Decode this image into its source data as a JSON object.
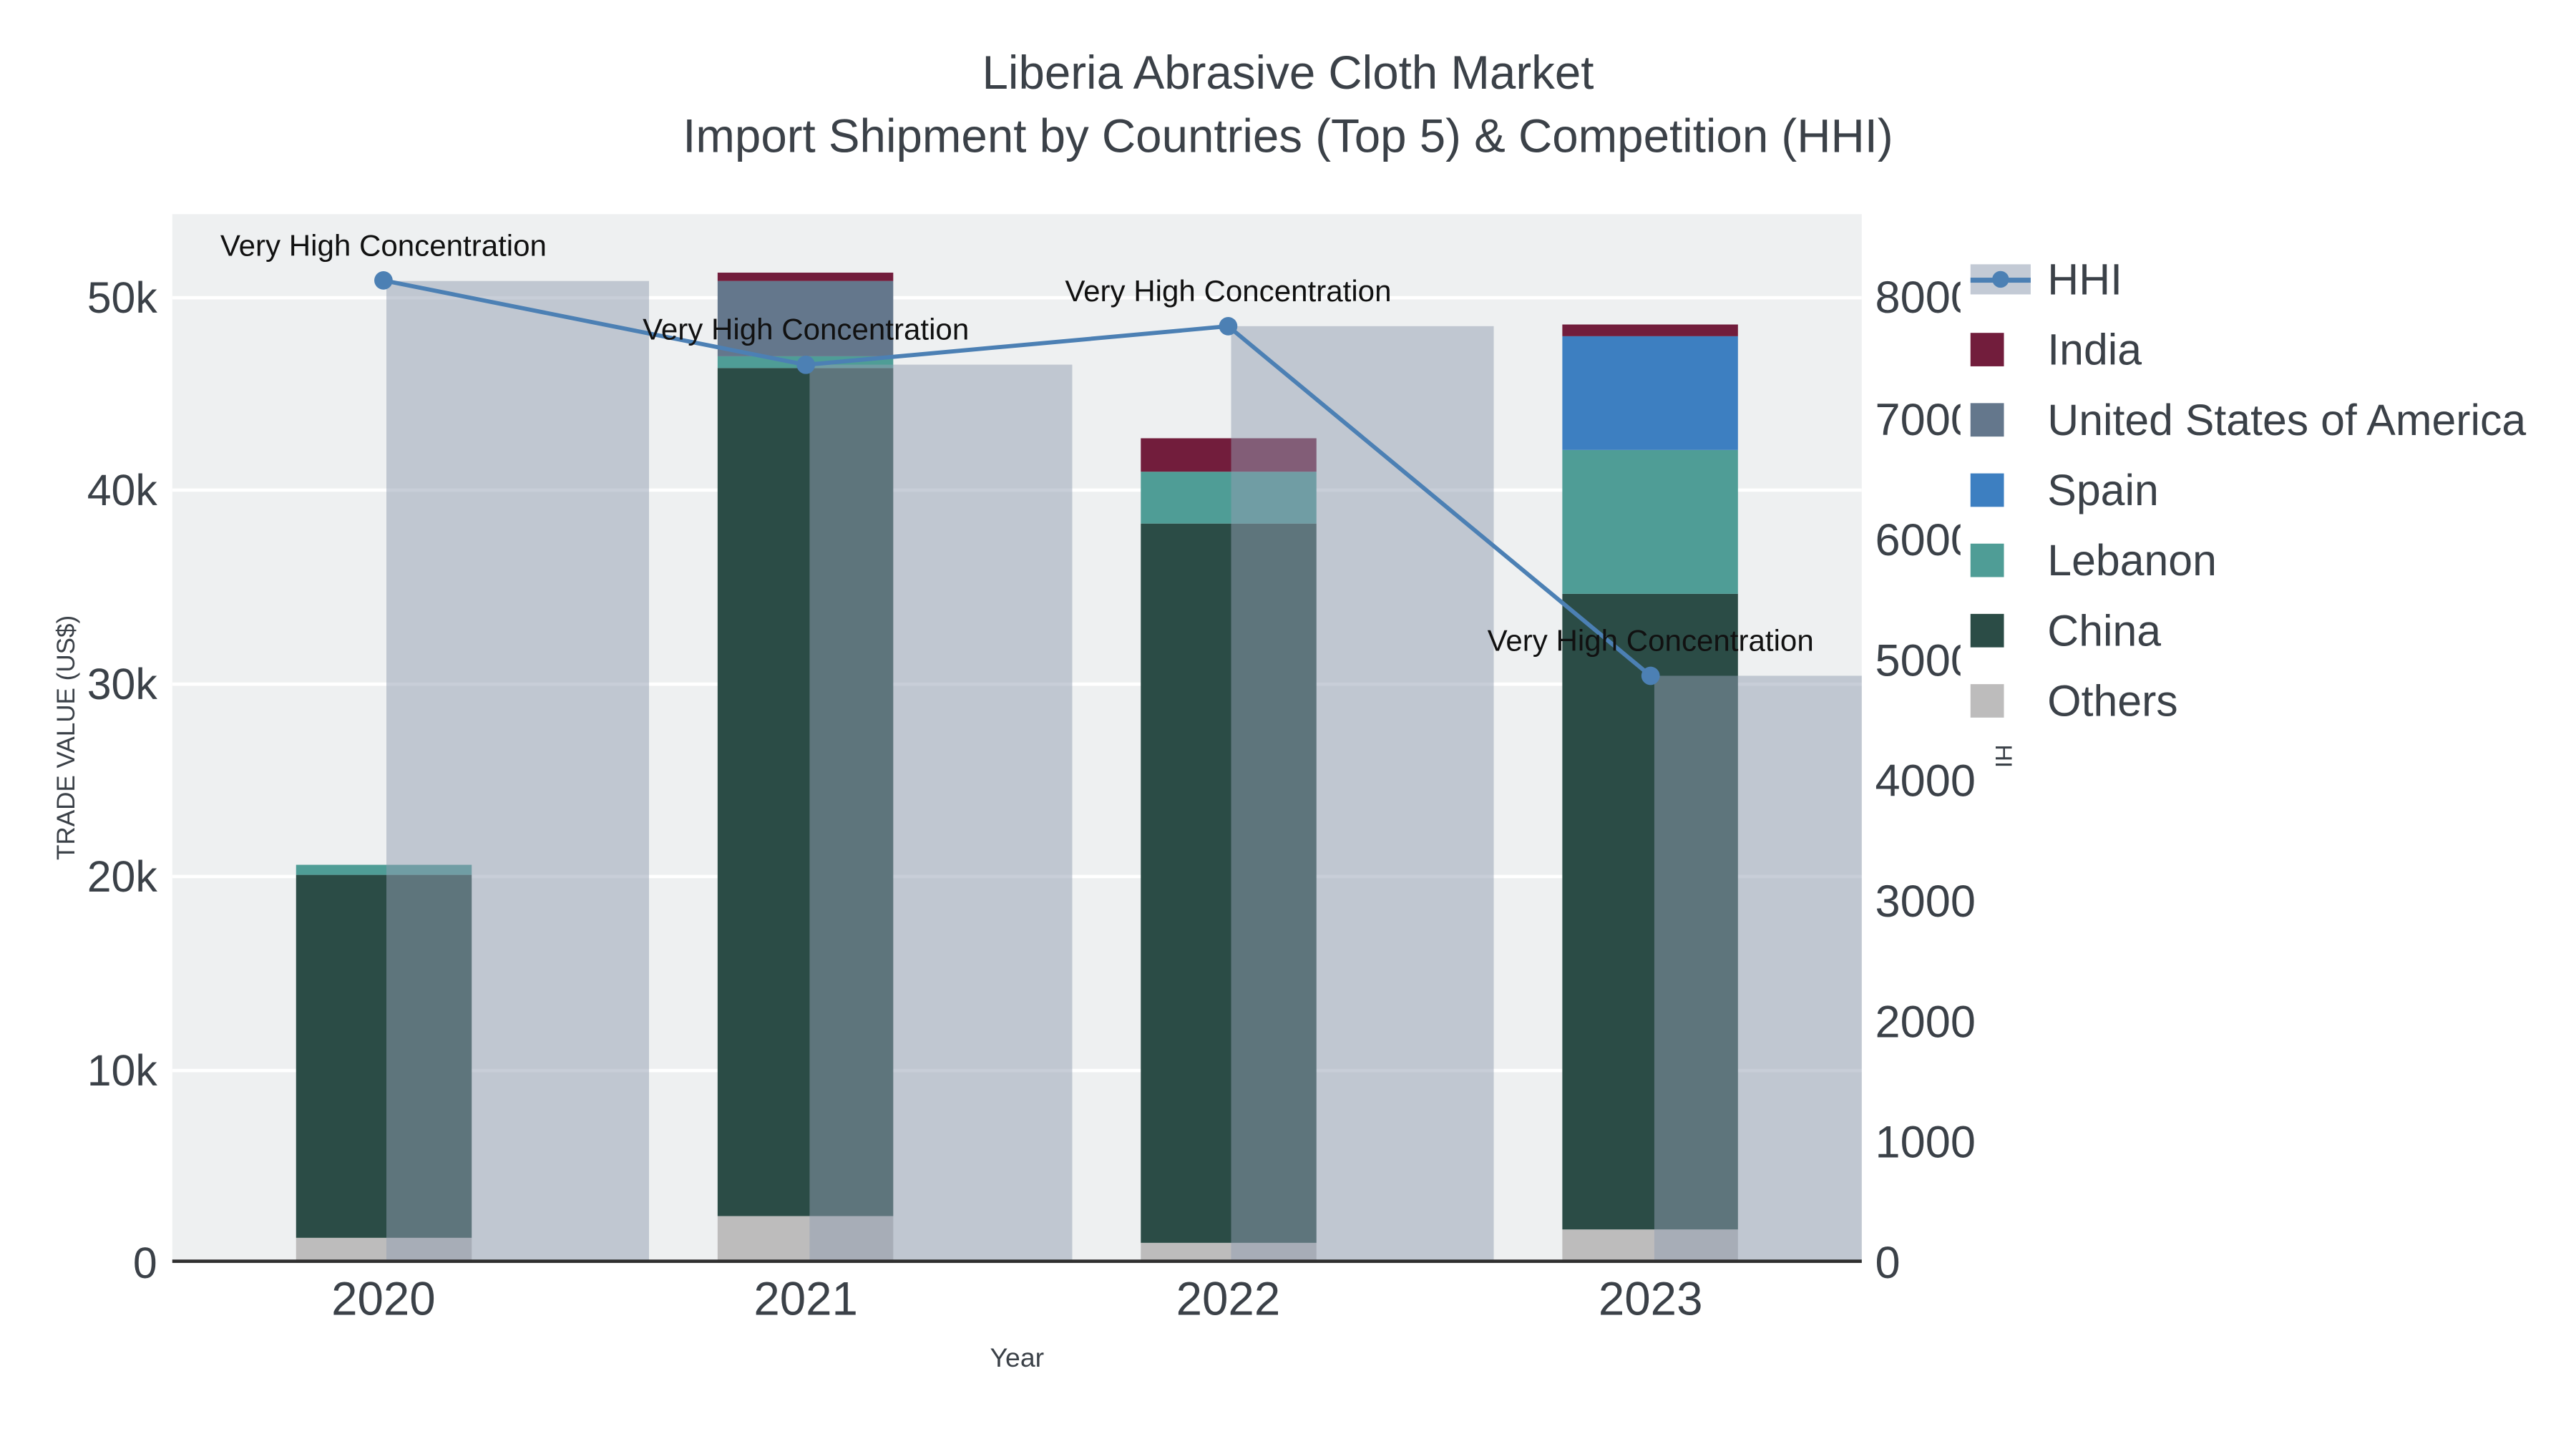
{
  "header": {
    "title_line1": "Liberia Abrasive Cloth Market",
    "title_line2": "Import Shipment by Countries (Top 5) & Competition (HHI)"
  },
  "chart_data": {
    "type": "bar",
    "subtype": "stacked-bars-with-hhi-line-overlay",
    "title_lines": [
      "Liberia Abrasive Cloth Market",
      "Import Shipment by Countries (Top 5) & Competition (HHI)"
    ],
    "categories": [
      "2020",
      "2021",
      "2022",
      "2023"
    ],
    "stacked_series": [
      {
        "name": "Others",
        "color": "#bdbcbc",
        "values": [
          1300,
          2400,
          1000,
          1700
        ]
      },
      {
        "name": "China",
        "color": "#2b4c46",
        "values": [
          18800,
          43900,
          37300,
          32900
        ]
      },
      {
        "name": "Lebanon",
        "color": "#4f9d96",
        "values": [
          500,
          600,
          2700,
          7500
        ]
      },
      {
        "name": "Spain",
        "color": "#3d7fc1",
        "values": [
          0,
          0,
          0,
          5900
        ]
      },
      {
        "name": "United States of America",
        "color": "#64778c",
        "values": [
          0,
          3900,
          0,
          0
        ]
      },
      {
        "name": "India",
        "color": "#721d3c",
        "values": [
          0,
          500,
          1700,
          600
        ]
      }
    ],
    "line_series": {
      "name": "HHI",
      "axis": "right",
      "values": [
        8150,
        7450,
        7770,
        4870
      ],
      "line_color": "#4c80b4",
      "band_color": "rgba(146,158,178,0.5)"
    },
    "annotations": [
      {
        "text": "Very High Concentration",
        "category": "2020"
      },
      {
        "text": "Very High Concentration",
        "category": "2021"
      },
      {
        "text": "Very High Concentration",
        "category": "2022"
      },
      {
        "text": "Very High Concentration",
        "category": "2023"
      }
    ],
    "x_axis": {
      "label": "Year",
      "ticks": [
        "2020",
        "2021",
        "2022",
        "2023"
      ]
    },
    "left_axis": {
      "label": "TRADE VALUE (US$)",
      "max": 54300,
      "ticks": [
        {
          "label": "0",
          "value": 0
        },
        {
          "label": "10k",
          "value": 10000
        },
        {
          "label": "20k",
          "value": 20000
        },
        {
          "label": "30k",
          "value": 30000
        },
        {
          "label": "40k",
          "value": 40000
        },
        {
          "label": "50k",
          "value": 50000
        }
      ]
    },
    "right_axis": {
      "label": "HHI",
      "max": 8700,
      "ticks": [
        {
          "label": "0",
          "value": 0
        },
        {
          "label": "1000",
          "value": 1000
        },
        {
          "label": "2000",
          "value": 2000
        },
        {
          "label": "3000",
          "value": 3000
        },
        {
          "label": "4000",
          "value": 4000
        },
        {
          "label": "5000",
          "value": 5000
        },
        {
          "label": "6000",
          "value": 6000
        },
        {
          "label": "7000",
          "value": 7000
        },
        {
          "label": "8000",
          "value": 8000
        }
      ]
    },
    "legend": {
      "position": "top-right",
      "items": [
        "HHI",
        "India",
        "United States of America",
        "Spain",
        "Lebanon",
        "China",
        "Others"
      ]
    },
    "grid": true,
    "plot_background": "#eef0f1"
  }
}
